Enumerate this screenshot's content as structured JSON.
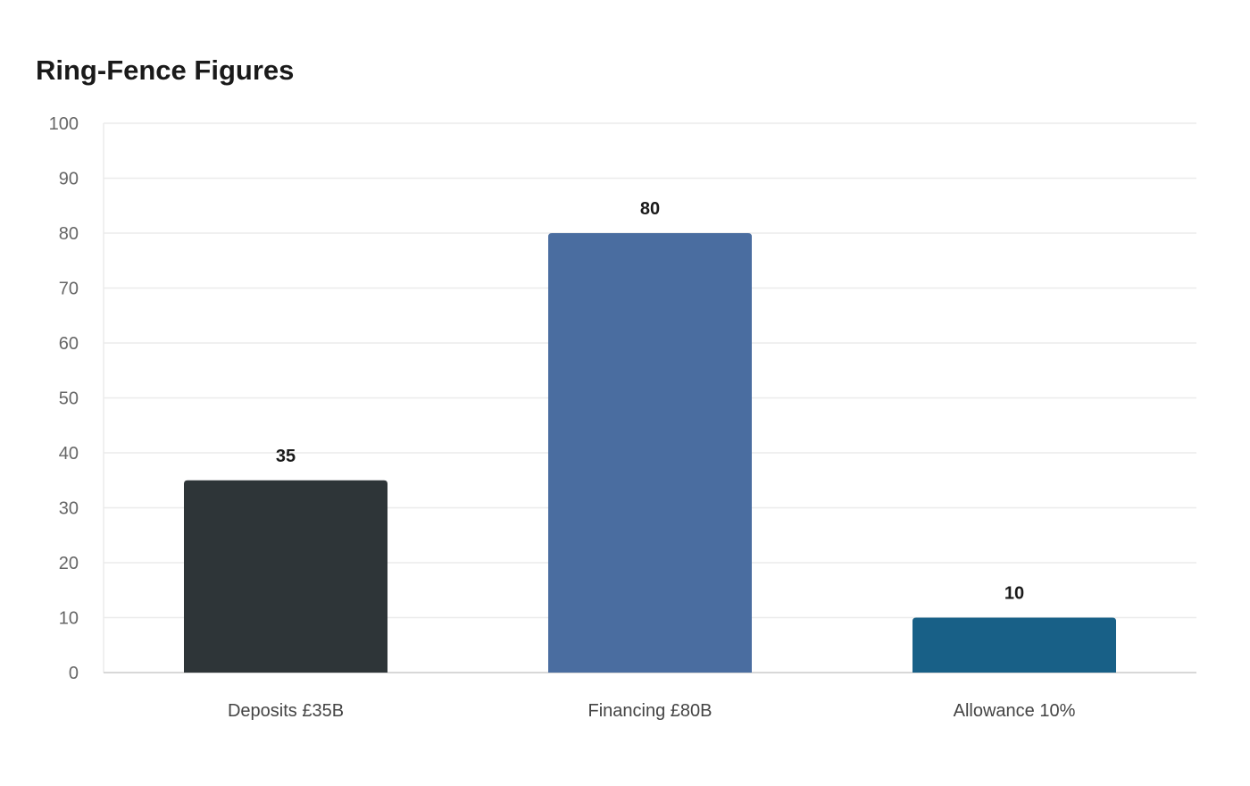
{
  "chart_data": {
    "type": "bar",
    "title": "Ring-Fence Figures",
    "categories": [
      "Deposits £35B",
      "Financing £80B",
      "Allowance 10%"
    ],
    "values": [
      35,
      80,
      10
    ],
    "data_labels": [
      "35",
      "80",
      "10"
    ],
    "bar_colors": [
      "#2e3538",
      "#4a6da0",
      "#186087"
    ],
    "ylim": [
      0,
      100
    ],
    "yticks": [
      0,
      10,
      20,
      30,
      40,
      50,
      60,
      70,
      80,
      90,
      100
    ],
    "xlabel": "",
    "ylabel": "",
    "grid": true,
    "legend": "none"
  },
  "colors": {
    "grid": "#ebebeb",
    "axis": "#cccccc"
  }
}
